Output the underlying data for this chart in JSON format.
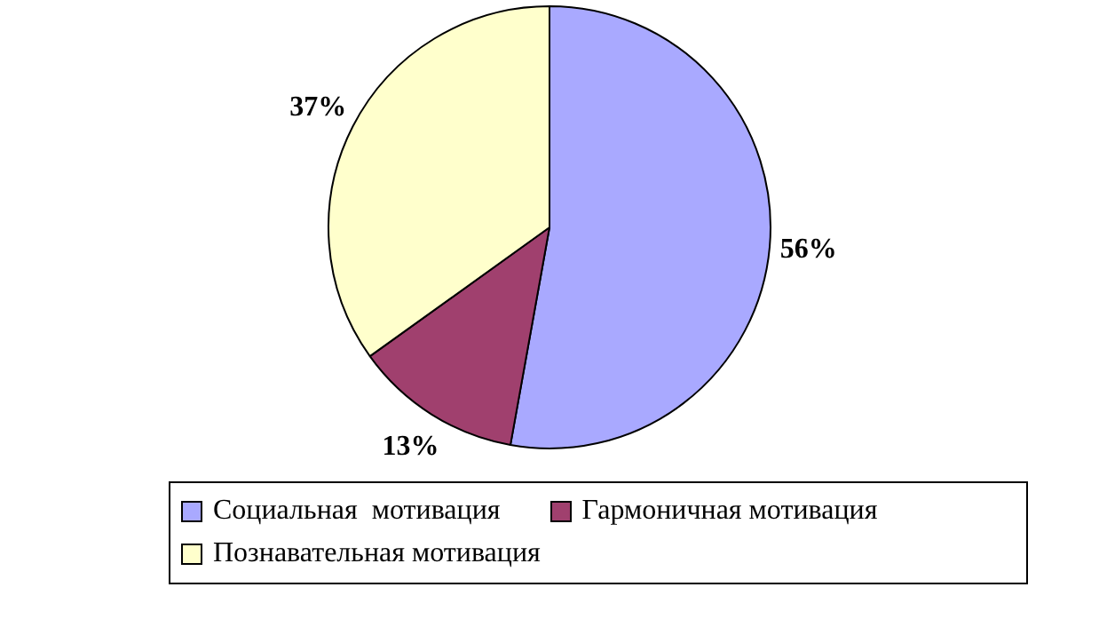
{
  "chart_data": {
    "type": "pie",
    "categories": [
      "Социальная  мотивация",
      "Гармоничная мотивация",
      "Познавательная мотивация"
    ],
    "values": [
      56,
      13,
      37
    ],
    "colors": [
      "#a9a9ff",
      "#a0406e",
      "#ffffcc"
    ],
    "value_labels": [
      "56%",
      "13%",
      "37%"
    ],
    "legend": "bottom"
  }
}
